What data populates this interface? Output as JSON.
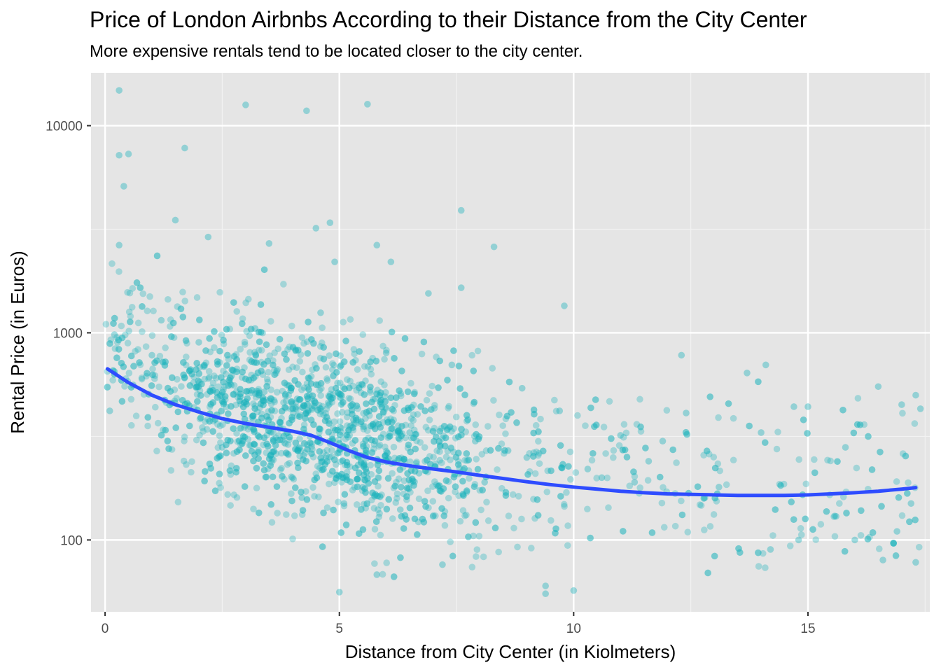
{
  "title": "Price of London Airbnbs According to their Distance from the City Center",
  "subtitle": "More expensive rentals tend to be located closer to the city center.",
  "chart_data": {
    "type": "scatter",
    "xlabel": "Distance from City Center (in Kiolmeters)",
    "ylabel": "Rental Price (in Euros)",
    "xlim": [
      -0.3,
      17.6
    ],
    "ylim": [
      45,
      18000
    ],
    "y_scale": "log10",
    "x_ticks": [
      0,
      5,
      10,
      15
    ],
    "x_tick_labels": [
      "0",
      "5",
      "10",
      "15"
    ],
    "y_ticks": [
      100,
      1000,
      10000
    ],
    "y_tick_labels": [
      "100",
      "1000",
      "10000"
    ],
    "grid": true,
    "point_color": "#1ab2bb",
    "trend_color": "#2e4cff",
    "panel_background": "#e5e5e5",
    "series": [
      {
        "kind": "points",
        "x": [
          0.3,
          3.0,
          4.3,
          5.6,
          1.7,
          0.3,
          0.5,
          0.4,
          7.6,
          4.8,
          4.5,
          3.5,
          2.2,
          0.3,
          5.8,
          1.5,
          8.3,
          4.9,
          6.1,
          7.6,
          9.8,
          6.9,
          12.3,
          13.7,
          14.1,
          16.5,
          17.3,
          17.0,
          14.7,
          15.0,
          11.0,
          12.4,
          11.9,
          14.0,
          15.8,
          16.0,
          17.2,
          17.3,
          16.9,
          16.6,
          17.4,
          15.6,
          14.2,
          14.8,
          13.1,
          12.8,
          5.0,
          9.4,
          9.4,
          10.0,
          5.8,
          7.2,
          0.1,
          0.2,
          0.6,
          1.0,
          2.7,
          3.4,
          4.1,
          4.6,
          5.3,
          6.5,
          7.9,
          8.6,
          9.0,
          10.3,
          10.6,
          11.3,
          0.2,
          1.2,
          2.0,
          3.2,
          4.6,
          6.0,
          7.4,
          8.9,
          9.7,
          11.6,
          2.5,
          3.9,
          5.4,
          6.7,
          8.1,
          4.2,
          5.1,
          6.3,
          7.0,
          4.0,
          5.5
        ],
        "y": [
          14800,
          12600,
          11800,
          12700,
          7800,
          7200,
          7300,
          5100,
          3900,
          3400,
          3200,
          2700,
          2900,
          2650,
          2650,
          3500,
          2600,
          2200,
          2200,
          1650,
          1350,
          1550,
          780,
          640,
          700,
          550,
          500,
          450,
          440,
          440,
          320,
          410,
          300,
          330,
          280,
          100,
          150,
          78,
          110,
          80,
          430,
          130,
          90,
          100,
          180,
          160,
          56,
          55,
          60,
          57,
          68,
          76,
          420,
          650,
          560,
          780,
          620,
          520,
          480,
          430,
          380,
          330,
          300,
          270,
          250,
          220,
          200,
          190,
          980,
          1150,
          900,
          1050,
          1250,
          800,
          700,
          540,
          420,
          240,
          280,
          260,
          230,
          210,
          190,
          160,
          150,
          140,
          130,
          200,
          180
        ]
      },
      {
        "kind": "trend",
        "name": "",
        "x": [
          0.05,
          0.5,
          1.0,
          1.5,
          2.0,
          2.5,
          3.0,
          3.5,
          4.0,
          4.4,
          4.8,
          5.2,
          5.6,
          6.0,
          6.5,
          7.0,
          7.5,
          8.0,
          8.5,
          9.0,
          9.5,
          10.0,
          10.5,
          11.0,
          11.5,
          12.0,
          12.5,
          13.0,
          13.5,
          14.0,
          14.5,
          15.0,
          15.5,
          16.0,
          16.5,
          17.0,
          17.3
        ],
        "y": [
          670,
          575,
          500,
          450,
          415,
          385,
          365,
          350,
          335,
          320,
          295,
          270,
          250,
          238,
          228,
          220,
          213,
          205,
          198,
          191,
          185,
          180,
          176,
          172,
          169,
          167,
          166,
          165,
          164,
          164,
          164,
          165,
          167,
          169,
          172,
          176,
          179
        ]
      }
    ]
  }
}
